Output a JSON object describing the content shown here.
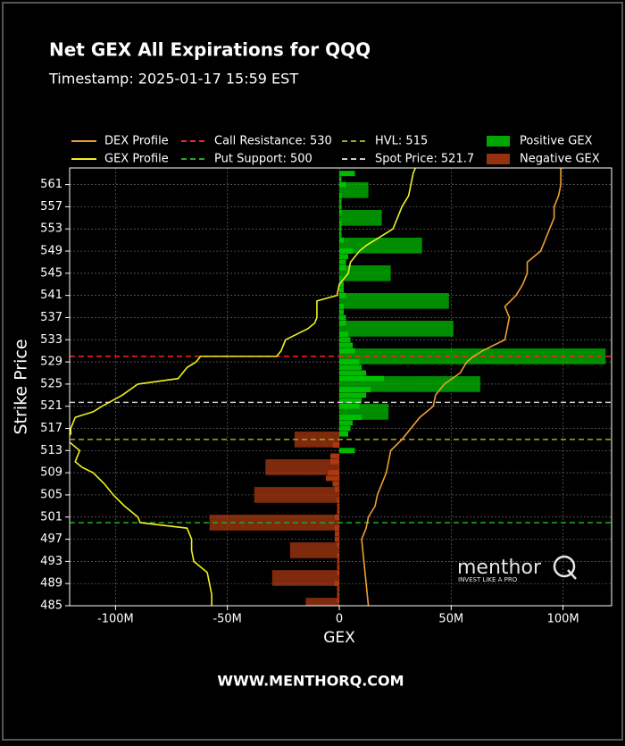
{
  "chart_data": {
    "type": "bar",
    "orientation": "horizontal",
    "title": "Net GEX All Expirations for QQQ",
    "subtitle": "Timestamp: 2025-01-17 15:59 EST",
    "xlabel": "GEX",
    "ylabel": "Strike Price",
    "footer": "WWW.MENTHORQ.COM",
    "watermark": {
      "brand": "menthor",
      "brand_mark": "Q",
      "tagline": "INVEST LIKE A PRO"
    },
    "xlim": [
      -120.5,
      121.7
    ],
    "ylim": [
      485,
      564
    ],
    "xticks": [
      {
        "value": -100,
        "label": "-100M"
      },
      {
        "value": -50,
        "label": "-50M"
      },
      0,
      {
        "value": 50,
        "label": "50M"
      },
      {
        "value": 100,
        "label": "100M"
      }
    ],
    "yticks": [
      485,
      489,
      493,
      497,
      501,
      505,
      509,
      513,
      517,
      521,
      525,
      529,
      533,
      537,
      541,
      545,
      549,
      553,
      557,
      561
    ],
    "grid": true,
    "y": [
      485,
      486,
      487,
      488,
      489,
      490,
      491,
      492,
      493,
      494,
      495,
      496,
      497,
      498,
      499,
      500,
      501,
      502,
      503,
      504,
      505,
      506,
      507,
      508,
      509,
      510,
      511,
      512,
      513,
      514,
      515,
      516,
      517,
      518,
      519,
      520,
      521,
      522,
      523,
      524,
      525,
      526,
      527,
      528,
      529,
      530,
      531,
      532,
      533,
      534,
      535,
      536,
      537,
      538,
      539,
      540,
      541,
      542,
      543,
      544,
      545,
      546,
      547,
      548,
      549,
      550,
      551,
      552,
      553,
      554,
      555,
      556,
      557,
      558,
      559,
      560,
      561,
      562,
      563
    ],
    "series": [
      {
        "name": "Positive GEX",
        "color": "#00c400",
        "values": [
          null,
          null,
          null,
          null,
          null,
          null,
          null,
          null,
          null,
          null,
          null,
          null,
          null,
          null,
          null,
          null,
          null,
          null,
          null,
          null,
          null,
          null,
          null,
          null,
          null,
          null,
          null,
          null,
          7,
          null,
          null,
          4,
          5,
          6,
          10,
          22,
          9,
          10,
          12,
          14,
          63,
          20,
          12,
          10,
          9,
          119,
          7,
          6,
          5,
          4,
          51,
          3,
          3,
          2,
          2,
          49,
          3,
          2,
          2,
          1,
          23,
          3,
          3,
          4,
          6,
          37,
          2,
          1,
          1,
          1,
          19,
          1,
          1,
          1,
          1,
          13,
          3,
          1,
          7
        ]
      },
      {
        "name": "Negative GEX",
        "color": "#b03a12",
        "values": [
          -15,
          -1,
          -1,
          -1,
          -2,
          -30,
          -1,
          -1,
          -1,
          -1,
          -22,
          -1,
          -2,
          -2,
          -2,
          -58,
          -2,
          -1,
          -1,
          -1,
          -38,
          -2,
          -3,
          -6,
          -5,
          -33,
          -4,
          -4,
          null,
          -3,
          -20,
          null,
          null,
          null,
          null,
          null,
          null,
          null,
          null,
          null,
          null,
          null,
          null,
          null,
          null,
          null,
          null,
          null,
          null,
          null,
          null,
          null,
          null,
          null,
          null,
          null,
          null,
          null,
          null,
          null,
          null,
          null,
          null,
          null,
          null,
          null,
          null,
          null,
          null,
          null,
          null,
          null,
          null,
          null,
          null,
          null,
          null,
          null,
          null
        ]
      }
    ],
    "lines": [
      {
        "name": "DEX Profile",
        "color": "#f0a030",
        "y": [
          485,
          489,
          493,
          497,
          499,
          501,
          503,
          505,
          509,
          511,
          513,
          515,
          517,
          519,
          521,
          523,
          525,
          527,
          529,
          530,
          531,
          533,
          535,
          537,
          539,
          541,
          543,
          545,
          547,
          549,
          551,
          553,
          555,
          557,
          559,
          561,
          563,
          564
        ],
        "values": [
          13,
          12,
          11,
          10,
          12,
          13,
          16,
          17,
          21,
          22,
          23,
          28,
          32,
          36,
          42,
          43,
          47,
          54,
          57,
          60,
          64,
          74,
          75,
          76,
          74,
          79,
          82,
          84,
          84,
          90,
          92,
          94,
          96,
          96,
          98,
          99,
          99,
          99
        ]
      },
      {
        "name": "GEX Profile",
        "color": "#f0f020",
        "y": [
          485,
          487,
          489,
          491,
          493,
          495,
          497,
          499,
          500,
          501,
          503,
          505,
          507,
          509,
          510,
          511,
          513,
          515,
          516,
          517,
          519,
          520,
          521,
          523,
          525,
          526,
          528,
          529,
          530,
          530,
          531,
          533,
          535,
          536,
          537,
          539,
          540,
          541,
          543,
          545,
          547,
          549,
          550,
          551,
          553,
          555,
          557,
          559,
          561,
          563,
          564
        ],
        "values": [
          -57,
          -57,
          -58,
          -59,
          -65,
          -66,
          -66,
          -68,
          -89,
          -90,
          -96,
          -101,
          -105,
          -110,
          -115,
          -118,
          -116,
          -122,
          -120,
          -120,
          -118,
          -110,
          -106,
          -97,
          -90,
          -72,
          -68,
          -64,
          -62,
          -28,
          -26,
          -24,
          -14,
          -11,
          -10,
          -10,
          -10,
          -1,
          0,
          4,
          5,
          9,
          12,
          16,
          24,
          26,
          28,
          31,
          32,
          33,
          34
        ]
      }
    ],
    "reference_lines": [
      {
        "name": "Call Resistance: 530",
        "value": 530,
        "color": "#ff2222"
      },
      {
        "name": "Put Support: 500",
        "value": 500,
        "color": "#22aa22"
      },
      {
        "name": "HVL: 515",
        "value": 515,
        "color": "#a8a820"
      },
      {
        "name": "Spot Price: 521.7",
        "value": 521.7,
        "color": "#cccccc"
      }
    ]
  }
}
